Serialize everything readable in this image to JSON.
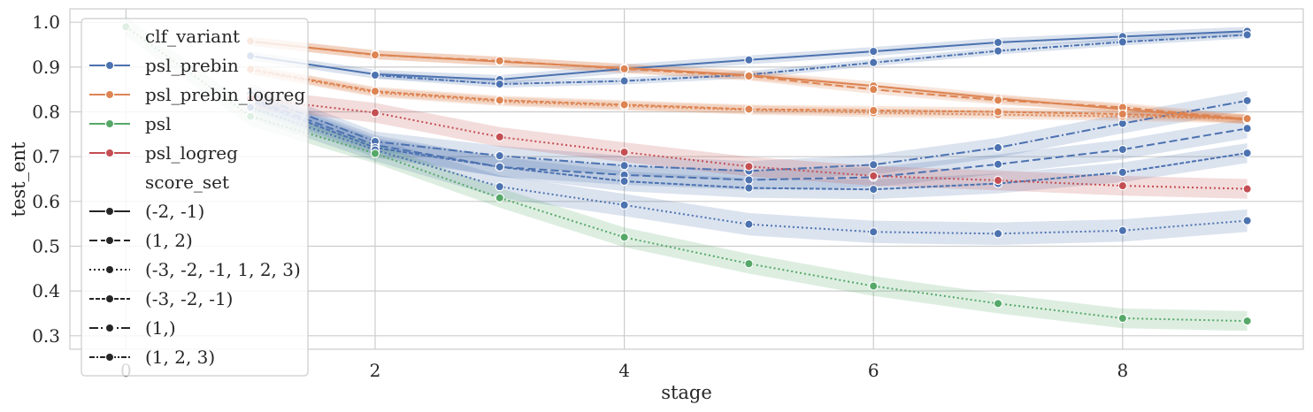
{
  "chart_data": {
    "type": "line",
    "xlabel": "stage",
    "ylabel": "test_ent",
    "xlim": [
      -0.45,
      9.45
    ],
    "ylim": [
      0.27,
      1.03
    ],
    "xticks": [
      0,
      2,
      4,
      6,
      8
    ],
    "yticks": [
      0.3,
      0.4,
      0.5,
      0.6,
      0.7,
      0.8,
      0.9,
      1.0
    ],
    "xtick_labels": [
      "0",
      "2",
      "4",
      "6",
      "8"
    ],
    "ytick_labels": [
      "0.3",
      "0.4",
      "0.5",
      "0.6",
      "0.7",
      "0.8",
      "0.9",
      "1.0"
    ],
    "grid": true,
    "legend_position": "upper-left",
    "legend": {
      "hue_title": "clf_variant",
      "style_title": "score_set",
      "hue_entries": [
        {
          "label": "psl_prebin",
          "color": "#4c72b0"
        },
        {
          "label": "psl_prebin_logreg",
          "color": "#dd8452"
        },
        {
          "label": "psl",
          "color": "#55a868"
        },
        {
          "label": "psl_logreg",
          "color": "#c44e52"
        }
      ],
      "style_entries": [
        {
          "label": "(-2, -1)",
          "dash": "solid"
        },
        {
          "label": "(1, 2)",
          "dash": "dashed"
        },
        {
          "label": "(-3, -2, -1, 1, 2, 3)",
          "dash": "dotted"
        },
        {
          "label": "(-3, -2, -1)",
          "dash": "densedash"
        },
        {
          "label": "(1,)",
          "dash": "dashdot"
        },
        {
          "label": "(1, 2, 3)",
          "dash": "densedashdot"
        }
      ]
    },
    "series": [
      {
        "name": "psl_prebin (-2, -1)",
        "variant": "psl_prebin",
        "score_set": "(-2, -1)",
        "color": "#4c72b0",
        "dash": "solid",
        "x": [
          1,
          2,
          3,
          4,
          5,
          6,
          7,
          8,
          9
        ],
        "y": [
          0.925,
          0.884,
          0.872,
          0.896,
          0.916,
          0.935,
          0.955,
          0.968,
          0.98
        ],
        "band": 0.01
      },
      {
        "name": "psl_prebin (1, 2, 3)",
        "variant": "psl_prebin",
        "score_set": "(1, 2, 3)",
        "color": "#4c72b0",
        "dash": "densedashdot",
        "x": [
          2,
          3,
          4,
          5,
          6,
          7,
          8,
          9
        ],
        "y": [
          0.882,
          0.862,
          0.869,
          0.883,
          0.91,
          0.936,
          0.956,
          0.972
        ],
        "band": 0.008
      },
      {
        "name": "psl_prebin (1, 2)",
        "variant": "psl_prebin",
        "score_set": "(1, 2)",
        "color": "#4c72b0",
        "dash": "dashed",
        "x": [
          1,
          2,
          3,
          4,
          5,
          6,
          7,
          8,
          9
        ],
        "y": [
          0.83,
          0.726,
          0.677,
          0.659,
          0.648,
          0.654,
          0.683,
          0.716,
          0.763
        ],
        "band": 0.022
      },
      {
        "name": "psl_prebin (1,)",
        "variant": "psl_prebin",
        "score_set": "(1,)",
        "color": "#4c72b0",
        "dash": "dashdot",
        "x": [
          1,
          2,
          3,
          4,
          5,
          6,
          7,
          8,
          9
        ],
        "y": [
          0.84,
          0.734,
          0.702,
          0.68,
          0.668,
          0.682,
          0.72,
          0.774,
          0.825
        ],
        "band": 0.022
      },
      {
        "name": "psl_prebin (-3, -2, -1)",
        "variant": "psl_prebin",
        "score_set": "(-3, -2, -1)",
        "color": "#4c72b0",
        "dash": "densedash",
        "x": [
          1,
          2,
          3,
          4,
          5,
          6,
          7,
          8,
          9
        ],
        "y": [
          0.825,
          0.72,
          0.677,
          0.645,
          0.63,
          0.627,
          0.64,
          0.665,
          0.708
        ],
        "band": 0.022
      },
      {
        "name": "psl_prebin (-3, -2, -1, 1, 2, 3)",
        "variant": "psl_prebin",
        "score_set": "(-3, -2, -1, 1, 2, 3)",
        "color": "#4c72b0",
        "dash": "dotted",
        "x": [
          1,
          2,
          3,
          4,
          5,
          6,
          7,
          8,
          9
        ],
        "y": [
          0.81,
          0.715,
          0.633,
          0.592,
          0.549,
          0.532,
          0.528,
          0.535,
          0.557
        ],
        "band": 0.025
      },
      {
        "name": "psl_prebin_logreg (-2, -1)",
        "variant": "psl_prebin_logreg",
        "score_set": "(-2, -1)",
        "color": "#dd8452",
        "dash": "solid",
        "x": [
          1,
          2,
          3,
          4,
          5,
          6,
          7,
          8,
          9
        ],
        "y": [
          0.957,
          0.928,
          0.912,
          0.898,
          0.882,
          0.858,
          0.83,
          0.806,
          0.782
        ],
        "band": 0.01
      },
      {
        "name": "psl_prebin_logreg (1, 2)",
        "variant": "psl_prebin_logreg",
        "score_set": "(1, 2)",
        "color": "#dd8452",
        "dash": "dashed",
        "x": [
          1,
          2,
          3,
          4,
          5,
          6,
          7,
          8,
          9
        ],
        "y": [
          0.958,
          0.927,
          0.914,
          0.896,
          0.88,
          0.85,
          0.826,
          0.81,
          0.784
        ],
        "band": 0.01
      },
      {
        "name": "psl_prebin_logreg (-3, -2, -1, 1, 2, 3)",
        "variant": "psl_prebin_logreg",
        "score_set": "(-3, -2, -1, 1, 2, 3)",
        "color": "#dd8452",
        "dash": "dotted",
        "x": [
          1,
          2,
          3,
          4,
          5,
          6,
          7,
          8,
          9
        ],
        "y": [
          0.893,
          0.843,
          0.823,
          0.813,
          0.804,
          0.798,
          0.794,
          0.79,
          0.784
        ],
        "band": 0.01
      },
      {
        "name": "psl_prebin_logreg (-3, -2, -1)",
        "variant": "psl_prebin_logreg",
        "score_set": "(-3, -2, -1)",
        "color": "#dd8452",
        "dash": "densedash",
        "x": [
          1,
          2,
          3,
          4,
          5,
          6,
          7,
          8,
          9
        ],
        "y": [
          0.895,
          0.846,
          0.826,
          0.816,
          0.806,
          0.803,
          0.8,
          0.795,
          0.785
        ],
        "band": 0.01
      },
      {
        "name": "psl (-3, -2, -1, 1, 2, 3)",
        "variant": "psl",
        "score_set": "(-3, -2, -1, 1, 2, 3)",
        "color": "#55a868",
        "dash": "dotted",
        "x": [
          0,
          1,
          2,
          3,
          4,
          5,
          6,
          7,
          8,
          9
        ],
        "y": [
          0.99,
          0.79,
          0.707,
          0.608,
          0.52,
          0.461,
          0.411,
          0.372,
          0.339,
          0.333
        ],
        "band": 0.022
      },
      {
        "name": "psl_logreg (-3, -2, -1, 1, 2, 3)",
        "variant": "psl_logreg",
        "score_set": "(-3, -2, -1, 1, 2, 3)",
        "color": "#c44e52",
        "dash": "dotted",
        "x": [
          1,
          2,
          3,
          4,
          5,
          6,
          7,
          8,
          9
        ],
        "y": [
          0.83,
          0.798,
          0.744,
          0.71,
          0.678,
          0.657,
          0.647,
          0.635,
          0.628
        ],
        "band": 0.022
      }
    ]
  }
}
